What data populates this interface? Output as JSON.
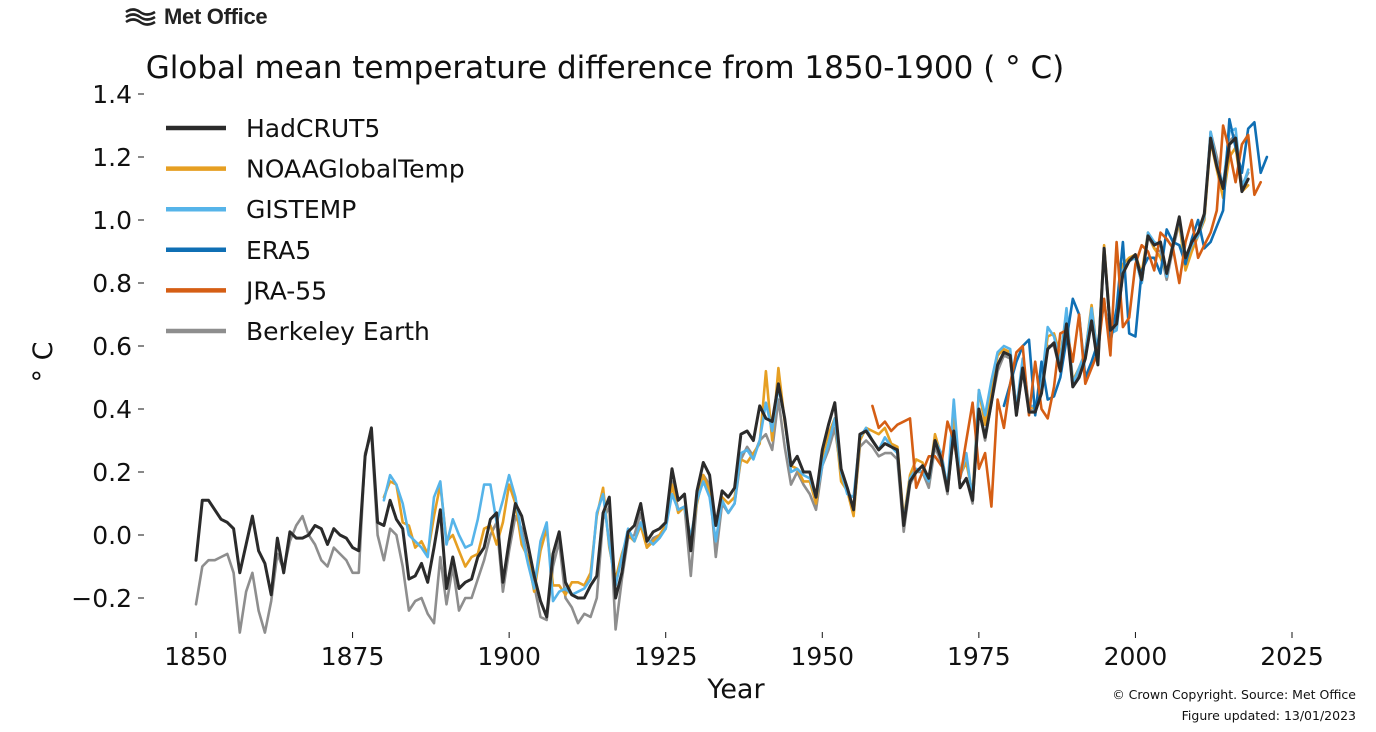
{
  "logo": {
    "text": "Met Office",
    "icon": "met-office-wave-logo"
  },
  "credits": {
    "copyright": "© Crown Copyright. Source: Met Office",
    "updated": "Figure updated: 13/01/2023"
  },
  "chart_data": {
    "type": "line",
    "title": "Global mean temperature difference from 1850-1900 ( ° C)",
    "xlabel": "Year",
    "ylabel": "° C",
    "xlim": [
      1850,
      2025
    ],
    "ylim": [
      -0.3,
      1.4
    ],
    "xticks": [
      "1850",
      "1875",
      "1900",
      "1925",
      "1950",
      "1975",
      "2000",
      "2025"
    ],
    "yticks": [
      "−0.2",
      "0.0",
      "0.2",
      "0.4",
      "0.6",
      "0.8",
      "1.0",
      "1.2",
      "1.4"
    ],
    "grid": false,
    "legend_position": "top-left",
    "series": [
      {
        "name": "HadCRUT5",
        "color": "#2b2b2b",
        "x_start": 1850,
        "values": [
          -0.08,
          0.11,
          0.11,
          0.08,
          0.05,
          0.04,
          0.02,
          -0.12,
          -0.03,
          0.06,
          -0.05,
          -0.09,
          -0.19,
          -0.01,
          -0.12,
          0.01,
          -0.01,
          -0.01,
          0.0,
          0.03,
          0.02,
          -0.03,
          0.02,
          0.0,
          -0.01,
          -0.04,
          -0.05,
          0.25,
          0.34,
          0.04,
          0.03,
          0.11,
          0.05,
          0.02,
          -0.14,
          -0.13,
          -0.09,
          -0.15,
          -0.04,
          0.08,
          -0.17,
          -0.07,
          -0.17,
          -0.15,
          -0.14,
          -0.07,
          -0.04,
          0.05,
          0.07,
          -0.15,
          -0.02,
          0.1,
          0.06,
          -0.03,
          -0.13,
          -0.21,
          -0.26,
          -0.06,
          0.01,
          -0.15,
          -0.19,
          -0.2,
          -0.2,
          -0.16,
          -0.13,
          0.07,
          0.12,
          -0.2,
          -0.12,
          0.01,
          0.03,
          0.1,
          -0.02,
          0.01,
          0.02,
          0.04,
          0.21,
          0.11,
          0.13,
          -0.05,
          0.14,
          0.23,
          0.19,
          0.03,
          0.14,
          0.12,
          0.15,
          0.32,
          0.33,
          0.3,
          0.41,
          0.37,
          0.36,
          0.48,
          0.37,
          0.22,
          0.25,
          0.2,
          0.2,
          0.12,
          0.27,
          0.35,
          0.42,
          0.21,
          0.15,
          0.08,
          0.32,
          0.33,
          0.3,
          0.27,
          0.29,
          0.28,
          0.27,
          0.03,
          0.17,
          0.2,
          0.22,
          0.18,
          0.3,
          0.24,
          0.14,
          0.33,
          0.15,
          0.18,
          0.11,
          0.4,
          0.31,
          0.42,
          0.54,
          0.58,
          0.57,
          0.38,
          0.53,
          0.39,
          0.39,
          0.45,
          0.59,
          0.61,
          0.52,
          0.67,
          0.47,
          0.5,
          0.56,
          0.68,
          0.54,
          0.91,
          0.65,
          0.67,
          0.83,
          0.87,
          0.89,
          0.81,
          0.95,
          0.92,
          0.93,
          0.83,
          0.92,
          1.01,
          0.88,
          0.93,
          0.96,
          1.02,
          1.26,
          1.17,
          1.1,
          1.24,
          1.26,
          1.09,
          1.13
        ]
      },
      {
        "name": "NOAAGlobalTemp",
        "color": "#e69f22",
        "x_start": 1880,
        "values": [
          0.12,
          0.17,
          0.16,
          0.04,
          0.03,
          -0.04,
          -0.02,
          -0.06,
          0.06,
          0.16,
          -0.02,
          0.0,
          -0.05,
          -0.1,
          -0.07,
          -0.06,
          0.02,
          0.03,
          -0.03,
          0.04,
          0.16,
          0.1,
          -0.03,
          -0.07,
          -0.18,
          -0.05,
          0.02,
          -0.16,
          -0.16,
          -0.19,
          -0.15,
          -0.15,
          -0.16,
          -0.12,
          0.06,
          0.15,
          -0.04,
          -0.14,
          -0.06,
          0.0,
          -0.02,
          0.03,
          -0.04,
          -0.02,
          0.0,
          0.03,
          0.16,
          0.07,
          0.09,
          -0.01,
          0.1,
          0.19,
          0.14,
          0.03,
          0.12,
          0.1,
          0.12,
          0.24,
          0.23,
          0.26,
          0.29,
          0.52,
          0.3,
          0.53,
          0.36,
          0.22,
          0.21,
          0.17,
          0.17,
          0.1,
          0.25,
          0.32,
          0.37,
          0.17,
          0.14,
          0.06,
          0.3,
          0.34,
          0.33,
          0.32,
          0.34,
          0.29,
          0.28,
          0.05,
          0.19,
          0.24,
          0.23,
          0.17,
          0.32,
          0.25,
          0.15,
          0.39,
          0.19,
          0.23,
          0.13,
          0.46,
          0.35,
          0.47,
          0.57,
          0.59,
          0.58,
          0.4,
          0.55,
          0.41,
          0.4,
          0.48,
          0.63,
          0.64,
          0.57,
          0.7,
          0.49,
          0.53,
          0.58,
          0.73,
          0.56,
          0.92,
          0.66,
          0.68,
          0.86,
          0.88,
          0.89,
          0.83,
          0.96,
          0.91,
          0.88,
          0.83,
          0.93,
          0.99,
          0.84,
          0.9,
          0.95,
          1.0,
          1.25,
          1.16,
          1.07,
          1.2,
          1.23,
          1.09,
          1.11
        ]
      },
      {
        "name": "GISTEMP",
        "color": "#56b4e9",
        "x_start": 1880,
        "values": [
          0.11,
          0.19,
          0.16,
          0.1,
          0.0,
          -0.02,
          -0.04,
          -0.07,
          0.12,
          0.17,
          -0.03,
          0.05,
          0.0,
          -0.04,
          -0.03,
          0.05,
          0.16,
          0.16,
          0.04,
          0.11,
          0.19,
          0.12,
          0.0,
          -0.09,
          -0.17,
          -0.02,
          0.04,
          -0.21,
          -0.18,
          -0.17,
          -0.19,
          -0.18,
          -0.17,
          -0.14,
          0.07,
          0.13,
          -0.03,
          -0.16,
          -0.07,
          0.02,
          -0.02,
          0.04,
          -0.01,
          -0.03,
          -0.01,
          0.02,
          0.13,
          0.08,
          0.09,
          -0.01,
          0.11,
          0.17,
          0.12,
          -0.02,
          0.11,
          0.07,
          0.1,
          0.26,
          0.27,
          0.24,
          0.3,
          0.42,
          0.33,
          0.47,
          0.37,
          0.2,
          0.21,
          0.19,
          0.18,
          0.12,
          0.22,
          0.29,
          0.37,
          0.2,
          0.13,
          0.12,
          0.31,
          0.34,
          0.3,
          0.27,
          0.31,
          0.28,
          0.26,
          0.04,
          0.18,
          0.21,
          0.2,
          0.17,
          0.3,
          0.26,
          0.15,
          0.43,
          0.18,
          0.26,
          0.11,
          0.46,
          0.38,
          0.49,
          0.58,
          0.6,
          0.59,
          0.4,
          0.56,
          0.41,
          0.41,
          0.48,
          0.66,
          0.63,
          0.55,
          0.72,
          0.48,
          0.53,
          0.58,
          0.72,
          0.56,
          0.91,
          0.64,
          0.65,
          0.84,
          0.87,
          0.88,
          0.8,
          0.96,
          0.93,
          0.92,
          0.82,
          0.93,
          1.0,
          0.87,
          0.92,
          0.95,
          1.01,
          1.28,
          1.18,
          1.11,
          1.28,
          1.29,
          1.1,
          1.16
        ]
      },
      {
        "name": "ERA5",
        "color": "#0f6fb4",
        "x_start": 1979,
        "values": [
          0.41,
          0.48,
          0.55,
          0.6,
          0.62,
          0.38,
          0.55,
          0.43,
          0.44,
          0.5,
          0.62,
          0.75,
          0.7,
          0.5,
          0.55,
          0.61,
          0.74,
          0.61,
          0.72,
          0.93,
          0.64,
          0.63,
          0.84,
          0.88,
          0.88,
          0.83,
          0.97,
          0.93,
          0.92,
          0.86,
          0.94,
          1.0,
          0.91,
          0.93,
          0.98,
          1.03,
          1.32,
          1.23,
          1.15,
          1.29,
          1.31,
          1.15,
          1.2
        ]
      },
      {
        "name": "JRA-55",
        "color": "#d55e14",
        "x_start": 1958,
        "values": [
          0.41,
          0.34,
          0.36,
          0.33,
          0.35,
          0.36,
          0.37,
          0.15,
          0.2,
          0.25,
          0.25,
          0.22,
          0.36,
          0.3,
          0.18,
          0.3,
          0.42,
          0.21,
          0.26,
          0.09,
          0.43,
          0.34,
          0.48,
          0.58,
          0.6,
          0.38,
          0.55,
          0.4,
          0.37,
          0.47,
          0.64,
          0.65,
          0.55,
          0.7,
          0.48,
          0.53,
          0.58,
          0.75,
          0.57,
          0.93,
          0.66,
          0.69,
          0.86,
          0.92,
          0.9,
          0.84,
          0.96,
          0.94,
          0.91,
          0.8,
          0.93,
          1.0,
          0.88,
          0.92,
          0.96,
          1.03,
          1.3,
          1.22,
          1.12,
          1.24,
          1.27,
          1.08,
          1.12
        ]
      },
      {
        "name": "Berkeley Earth",
        "color": "#8e8e8e",
        "x_start": 1850,
        "values": [
          -0.22,
          -0.1,
          -0.08,
          -0.08,
          -0.07,
          -0.06,
          -0.12,
          -0.31,
          -0.18,
          -0.12,
          -0.24,
          -0.31,
          -0.21,
          -0.06,
          -0.11,
          -0.02,
          0.03,
          0.06,
          0.0,
          -0.03,
          -0.08,
          -0.1,
          -0.04,
          -0.06,
          -0.08,
          -0.12,
          -0.12,
          0.26,
          0.32,
          0.0,
          -0.08,
          0.02,
          0.0,
          -0.1,
          -0.24,
          -0.21,
          -0.2,
          -0.25,
          -0.28,
          -0.07,
          -0.22,
          -0.1,
          -0.24,
          -0.2,
          -0.2,
          -0.14,
          -0.08,
          0.0,
          0.04,
          -0.18,
          -0.05,
          0.06,
          0.02,
          -0.08,
          -0.16,
          -0.26,
          -0.27,
          -0.1,
          -0.02,
          -0.2,
          -0.23,
          -0.28,
          -0.25,
          -0.26,
          -0.2,
          0.05,
          0.09,
          -0.3,
          -0.14,
          -0.01,
          0.0,
          0.07,
          -0.04,
          -0.01,
          0.0,
          0.02,
          0.17,
          0.08,
          0.09,
          -0.13,
          0.11,
          0.19,
          0.16,
          -0.07,
          0.1,
          0.07,
          0.1,
          0.24,
          0.28,
          0.25,
          0.3,
          0.32,
          0.27,
          0.43,
          0.28,
          0.16,
          0.2,
          0.16,
          0.13,
          0.08,
          0.22,
          0.27,
          0.34,
          0.2,
          0.14,
          0.07,
          0.28,
          0.3,
          0.28,
          0.25,
          0.26,
          0.26,
          0.24,
          0.01,
          0.16,
          0.2,
          0.2,
          0.15,
          0.28,
          0.23,
          0.13,
          0.34,
          0.15,
          0.18,
          0.1,
          0.4,
          0.3,
          0.42,
          0.52,
          0.57,
          0.56,
          0.38,
          0.52,
          0.4,
          0.39,
          0.45,
          0.6,
          0.6,
          0.52,
          0.68,
          0.47,
          0.51,
          0.56,
          0.69,
          0.54,
          0.9,
          0.65,
          0.66,
          0.83,
          0.87,
          0.88,
          0.8,
          0.95,
          0.91,
          0.9,
          0.81,
          0.91,
          0.99,
          0.86,
          0.91,
          0.95,
          1.0,
          1.28,
          1.2,
          1.1,
          1.25,
          1.27,
          1.11,
          1.15
        ]
      }
    ]
  }
}
